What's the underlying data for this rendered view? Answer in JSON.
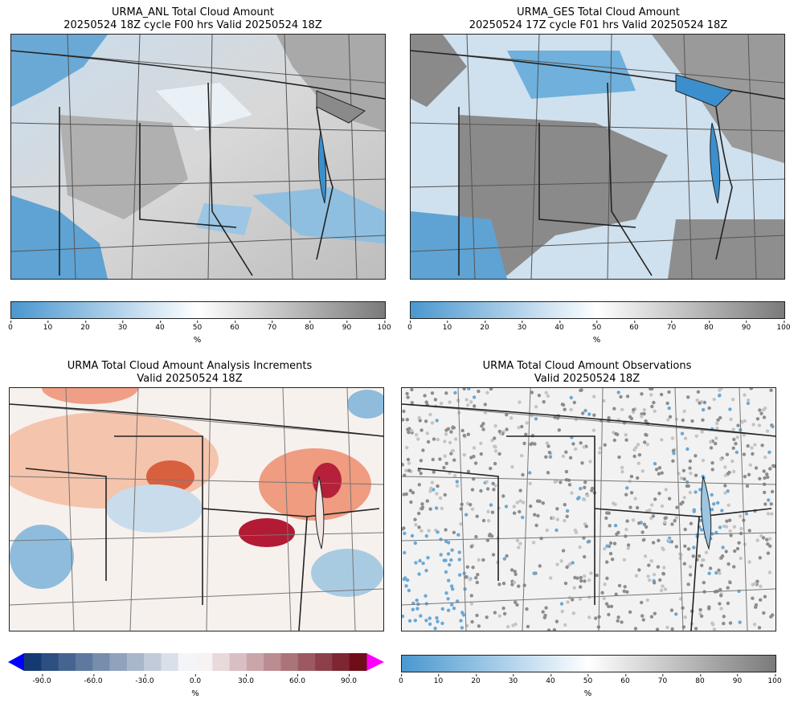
{
  "panels": [
    {
      "title_line1": "URMA_ANL Total Cloud Amount",
      "title_line2": "20250524 18Z cycle F00 hrs Valid 20250524 18Z",
      "colorbar": {
        "unit": "%",
        "ticks": [
          "0",
          "10",
          "20",
          "30",
          "40",
          "50",
          "60",
          "70",
          "80",
          "90",
          "100"
        ]
      }
    },
    {
      "title_line1": "URMA_GES Total Cloud Amount",
      "title_line2": "20250524 17Z cycle F01 hrs Valid 20250524 18Z",
      "colorbar": {
        "unit": "%",
        "ticks": [
          "0",
          "10",
          "20",
          "30",
          "40",
          "50",
          "60",
          "70",
          "80",
          "90",
          "100"
        ]
      }
    },
    {
      "title_line1": "URMA Total Cloud Amount Analysis Increments",
      "title_line2": "Valid 20250524 18Z",
      "colorbar": {
        "unit": "%",
        "ticks": [
          "-90.0",
          "-60.0",
          "-30.0",
          "0.0",
          "30.0",
          "60.0",
          "90.0"
        ]
      }
    },
    {
      "title_line1": "URMA Total Cloud Amount Observations",
      "title_line2": "Valid 20250524 18Z",
      "colorbar": {
        "unit": "%",
        "ticks": [
          "0",
          "10",
          "20",
          "30",
          "40",
          "50",
          "60",
          "70",
          "80",
          "90",
          "100"
        ]
      }
    }
  ],
  "colors": {
    "cloud_low": "#4a97cf",
    "cloud_mid": "#ffffff",
    "cloud_high": "#7a7a7a",
    "incr_low": "#08306b",
    "incr_high": "#67000d",
    "incr_under": "#0000ff",
    "incr_over": "#ff00ff"
  }
}
